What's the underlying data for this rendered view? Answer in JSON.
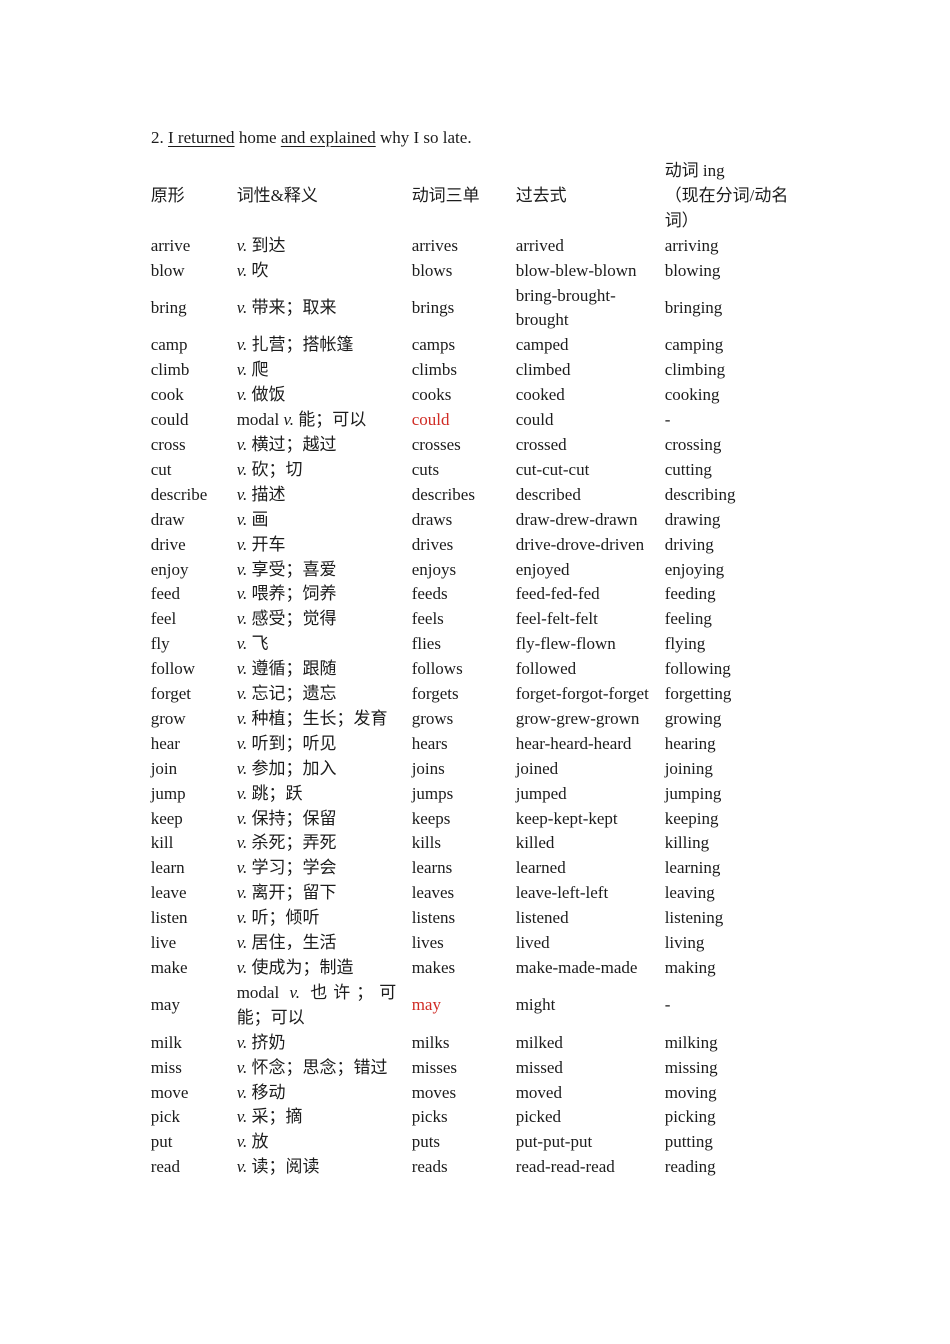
{
  "document": {
    "sentence": {
      "parts": [
        {
          "text": "2. ",
          "underline": false
        },
        {
          "text": "I returned",
          "underline": true
        },
        {
          "text": " home ",
          "underline": false
        },
        {
          "text": "and explained",
          "underline": true
        },
        {
          "text": " why I so late.",
          "underline": false
        }
      ]
    },
    "table": {
      "headers": [
        "原形",
        "词性&释义",
        "动词三单",
        "过去式",
        "动词 ing\n（现在分词/动名词）"
      ],
      "rows": [
        {
          "base": "arrive",
          "pos": "v.",
          "gloss": "到达",
          "third": "arrives",
          "past": "arrived",
          "ing": "arriving"
        },
        {
          "base": "blow",
          "pos": "v.",
          "gloss": "吹",
          "third": "blows",
          "past": "blow-blew-blown",
          "ing": "blowing"
        },
        {
          "base": "bring",
          "pos": "v.",
          "gloss": "带来；取来",
          "third": "brings",
          "past": "bring-brought-brought",
          "ing": "bringing"
        },
        {
          "base": "camp",
          "pos": "v.",
          "gloss": "扎营；搭帐篷",
          "third": "camps",
          "past": "camped",
          "ing": "camping"
        },
        {
          "base": "climb",
          "pos": "v.",
          "gloss": "爬",
          "third": "climbs",
          "past": "climbed",
          "ing": "climbing"
        },
        {
          "base": "cook",
          "pos": "v.",
          "gloss": "做饭",
          "third": "cooks",
          "past": "cooked",
          "ing": "cooking"
        },
        {
          "base": "could",
          "pos_roman": "modal",
          "pos": "v.",
          "gloss": "能；可以",
          "third": "could",
          "third_red": true,
          "past": "could",
          "ing": "-"
        },
        {
          "base": "cross",
          "pos": "v.",
          "gloss": "横过；越过",
          "third": "crosses",
          "past": "crossed",
          "ing": "crossing"
        },
        {
          "base": "cut",
          "pos": "v.",
          "gloss": "砍；切",
          "third": "cuts",
          "past": "cut-cut-cut",
          "ing": "cutting"
        },
        {
          "base": "describe",
          "pos": "v.",
          "gloss": "描述",
          "third": "describes",
          "past": "described",
          "ing": "describing"
        },
        {
          "base": "draw",
          "pos": "v.",
          "gloss": "画",
          "third": "draws",
          "past": "draw-drew-drawn",
          "ing": "drawing"
        },
        {
          "base": "drive",
          "pos": "v.",
          "gloss": "开车",
          "third": "drives",
          "past": "drive-drove-driven",
          "ing": "driving"
        },
        {
          "base": "enjoy",
          "pos": "v.",
          "gloss": "享受；喜爱",
          "third": "enjoys",
          "past": "enjoyed",
          "ing": "enjoying"
        },
        {
          "base": "feed",
          "pos": "v.",
          "gloss": "喂养；饲养",
          "third": "feeds",
          "past": "feed-fed-fed",
          "ing": "feeding"
        },
        {
          "base": "feel",
          "pos": "v.",
          "gloss": "感受；觉得",
          "third": "feels",
          "past": "feel-felt-felt",
          "ing": "feeling"
        },
        {
          "base": "fly",
          "pos": "v.",
          "gloss": "飞",
          "third": "flies",
          "past": "fly-flew-flown",
          "ing": "flying"
        },
        {
          "base": "follow",
          "pos": "v.",
          "gloss": "遵循；跟随",
          "third": "follows",
          "past": "followed",
          "ing": "following"
        },
        {
          "base": "forget",
          "pos": "v.",
          "gloss": "忘记；遗忘",
          "third": "forgets",
          "past": "forget-forgot-forget",
          "ing": "forgetting"
        },
        {
          "base": "grow",
          "pos": "v.",
          "gloss": "种植；生长；发育",
          "third": "grows",
          "past": "grow-grew-grown",
          "ing": "growing"
        },
        {
          "base": "hear",
          "pos": "v.",
          "gloss": "听到；听见",
          "third": "hears",
          "past": "hear-heard-heard",
          "ing": "hearing"
        },
        {
          "base": "join",
          "pos": "v.",
          "gloss": "参加；加入",
          "third": "joins",
          "past": "joined",
          "ing": "joining"
        },
        {
          "base": "jump",
          "pos": "v.",
          "gloss": "跳；跃",
          "third": "jumps",
          "past": "jumped",
          "ing": "jumping"
        },
        {
          "base": "keep",
          "pos": "v.",
          "gloss": "保持；保留",
          "third": "keeps",
          "past": "keep-kept-kept",
          "ing": "keeping"
        },
        {
          "base": "kill",
          "pos": "v.",
          "gloss": "杀死；弄死",
          "third": "kills",
          "past": "killed",
          "ing": "killing"
        },
        {
          "base": "learn",
          "pos": "v.",
          "gloss": "学习；学会",
          "third": "learns",
          "past": "learned",
          "ing": "learning"
        },
        {
          "base": "leave",
          "pos": "v.",
          "gloss": "离开；留下",
          "third": "leaves",
          "past": "leave-left-left",
          "ing": "leaving"
        },
        {
          "base": "listen",
          "pos": "v.",
          "gloss": "听；倾听",
          "third": "listens",
          "past": "listened",
          "ing": "listening"
        },
        {
          "base": "live",
          "pos": "v.",
          "gloss": "居住，生活",
          "third": "lives",
          "past": "lived",
          "ing": "living"
        },
        {
          "base": "make",
          "pos": "v.",
          "gloss": "使成为；制造",
          "third": "makes",
          "past": "make-made-made",
          "ing": "making"
        },
        {
          "base": "may",
          "pos_roman": "modal",
          "pos": "v.",
          "gloss": "也许；可能；可以",
          "third": "may",
          "third_red": true,
          "past": "might",
          "ing": "-"
        },
        {
          "base": "milk",
          "pos": "v.",
          "gloss": "挤奶",
          "third": "milks",
          "past": "milked",
          "ing": "milking"
        },
        {
          "base": "miss",
          "pos": "v.",
          "gloss": "怀念；思念；错过",
          "third": "misses",
          "past": "missed",
          "ing": "missing"
        },
        {
          "base": "move",
          "pos": "v.",
          "gloss": "移动",
          "third": "moves",
          "past": "moved",
          "ing": "moving"
        },
        {
          "base": "pick",
          "pos": "v.",
          "gloss": "采；摘",
          "third": "picks",
          "past": "picked",
          "ing": "picking"
        },
        {
          "base": "put",
          "pos": "v.",
          "gloss": "放",
          "third": "puts",
          "past": "put-put-put",
          "ing": "putting"
        },
        {
          "base": "read",
          "pos": "v.",
          "gloss": "读；阅读",
          "third": "reads",
          "past": "read-read-read",
          "ing": "reading"
        }
      ]
    }
  },
  "colors": {
    "text": "#1c1c1c",
    "red": "#d02b24",
    "background": "#ffffff"
  }
}
